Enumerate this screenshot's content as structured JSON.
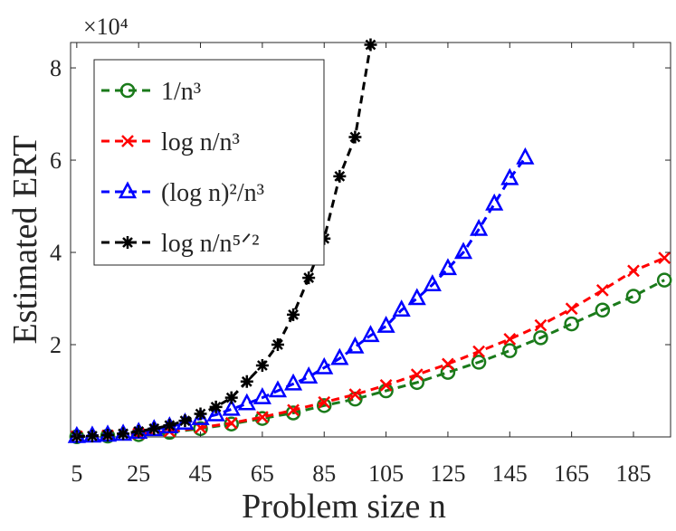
{
  "chart_data": {
    "type": "line",
    "xlabel": "Problem size n",
    "ylabel": "Estimated ERT",
    "y_multiplier": "×10⁴",
    "xlim": [
      3,
      197
    ],
    "xticks": [
      5,
      25,
      45,
      65,
      85,
      105,
      125,
      145,
      165,
      185
    ],
    "ylim": [
      0,
      8.55
    ],
    "yticks": [
      2,
      4,
      6,
      8
    ],
    "legend": "upper left",
    "series": [
      {
        "name": "1/n³",
        "color": "#1a7a1a",
        "marker": "circle",
        "x": [
          5,
          15,
          25,
          35,
          45,
          55,
          65,
          75,
          85,
          95,
          105,
          115,
          125,
          135,
          145,
          155,
          165,
          175,
          185,
          195
        ],
        "values": [
          0.005,
          0.02,
          0.05,
          0.1,
          0.18,
          0.28,
          0.4,
          0.52,
          0.68,
          0.82,
          1.0,
          1.18,
          1.4,
          1.62,
          1.87,
          2.15,
          2.45,
          2.75,
          3.05,
          3.4
        ]
      },
      {
        "name": "log n/n³",
        "color": "#ff0000",
        "marker": "x",
        "x": [
          5,
          15,
          25,
          35,
          45,
          55,
          65,
          75,
          85,
          95,
          105,
          115,
          125,
          135,
          145,
          155,
          165,
          175,
          185,
          195
        ],
        "values": [
          0.01,
          0.03,
          0.07,
          0.12,
          0.2,
          0.3,
          0.43,
          0.58,
          0.75,
          0.92,
          1.12,
          1.35,
          1.58,
          1.85,
          2.12,
          2.42,
          2.78,
          3.18,
          3.6,
          3.88
        ]
      },
      {
        "name": "(log n)²/n³",
        "color": "#0000ff",
        "marker": "triangle",
        "x": [
          5,
          10,
          15,
          20,
          25,
          30,
          35,
          40,
          45,
          50,
          55,
          60,
          65,
          70,
          75,
          80,
          85,
          90,
          95,
          100,
          105,
          110,
          115,
          120,
          125,
          130,
          135,
          140,
          145,
          150
        ],
        "values": [
          0.01,
          0.02,
          0.04,
          0.06,
          0.1,
          0.16,
          0.22,
          0.3,
          0.4,
          0.48,
          0.6,
          0.72,
          0.85,
          1.0,
          1.15,
          1.3,
          1.5,
          1.7,
          1.95,
          2.2,
          2.4,
          2.75,
          3.0,
          3.3,
          3.65,
          4.0,
          4.5,
          5.05,
          5.6,
          6.05
        ]
      },
      {
        "name": "log n/n⁵ᐟ²",
        "color": "#000000",
        "marker": "star",
        "x": [
          5,
          10,
          15,
          20,
          25,
          30,
          35,
          40,
          45,
          50,
          55,
          60,
          65,
          70,
          75,
          80,
          85,
          90,
          95,
          100
        ],
        "values": [
          0.01,
          0.02,
          0.04,
          0.07,
          0.12,
          0.18,
          0.25,
          0.35,
          0.5,
          0.65,
          0.85,
          1.2,
          1.55,
          2.0,
          2.65,
          3.45,
          4.3,
          5.65,
          6.5,
          8.5
        ]
      }
    ]
  }
}
